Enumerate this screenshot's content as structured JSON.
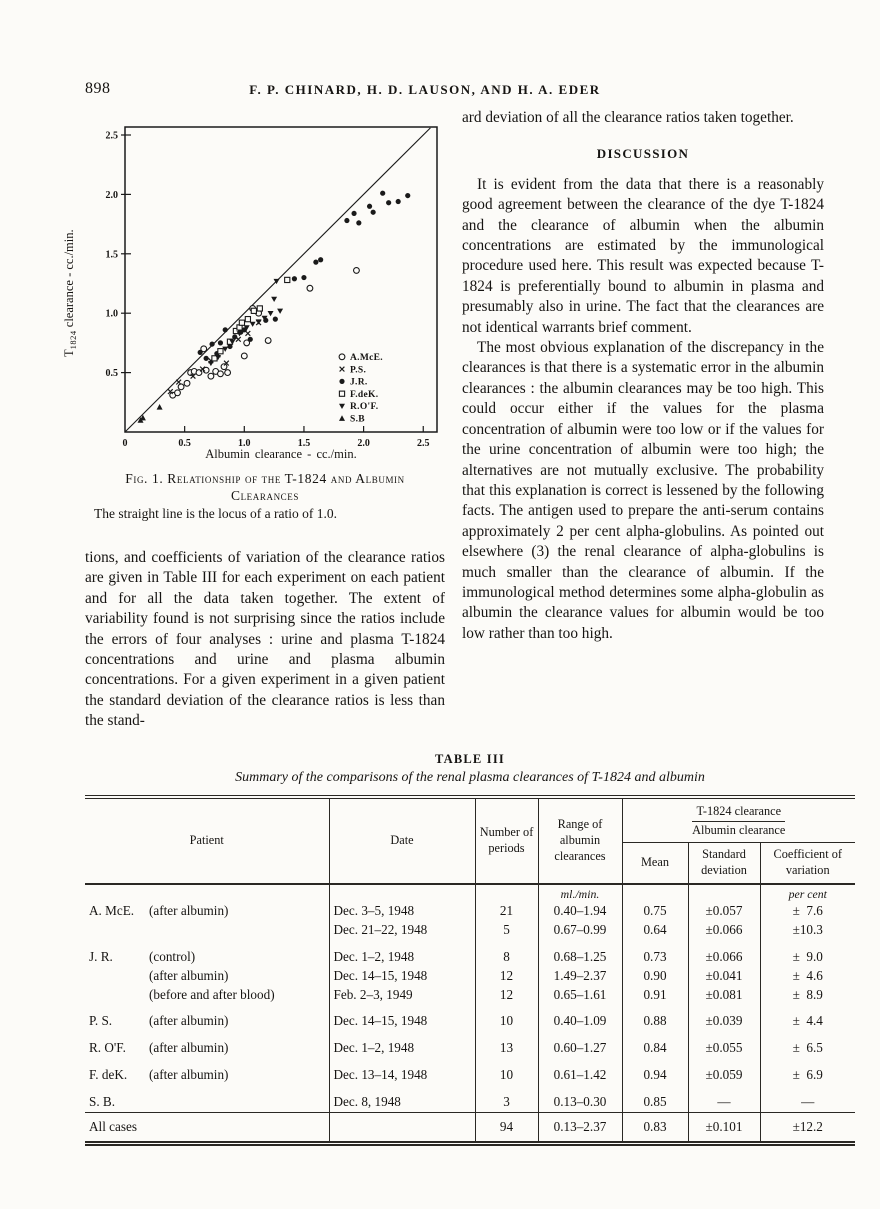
{
  "page": {
    "number": "898",
    "running_head": "F. P. CHINARD, H. D. LAUSON, AND H. A. EDER"
  },
  "figure": {
    "caption_line1": "Fig. 1. Relationship of the T-1824 and Albumin",
    "caption_line2": "Clearances",
    "note": "The straight line is the locus of a ratio of 1.0.",
    "xlabel": "Albumin clearance - cc./min.",
    "ylabel_base": "T",
    "ylabel_sub": "1824",
    "ylabel_rest": " clearance - cc./min."
  },
  "chart_data": {
    "type": "scatter",
    "title": "Fig. 1. Relationship of the T-1824 and Albumin Clearances",
    "xlabel": "Albumin clearance - cc./min.",
    "ylabel": "T-1824 clearance - cc./min.",
    "xlim": [
      0,
      2.62
    ],
    "ylim": [
      0,
      2.57
    ],
    "x_ticks": [
      0,
      0.5,
      1.0,
      1.5,
      2.0,
      2.5
    ],
    "x_tick_labels": [
      "0",
      "0.5",
      "1.0",
      "1.5",
      "2.0",
      "2.5"
    ],
    "y_ticks": [
      0.5,
      1.0,
      1.5,
      2.0,
      2.5
    ],
    "y_tick_labels": [
      "0.5",
      "1.0",
      "1.5",
      "2.0",
      "2.5"
    ],
    "grid": false,
    "legend_position": "inside-lower-right",
    "reference_line": {
      "from": [
        0,
        0
      ],
      "to": [
        2.56,
        2.56
      ],
      "meaning": "locus of ratio 1.0"
    },
    "series": [
      {
        "name": "A.McE.",
        "marker": "open-circle",
        "points": [
          [
            0.4,
            0.31
          ],
          [
            0.44,
            0.33
          ],
          [
            0.47,
            0.38
          ],
          [
            0.52,
            0.41
          ],
          [
            0.55,
            0.5
          ],
          [
            0.58,
            0.51
          ],
          [
            0.62,
            0.5
          ],
          [
            0.66,
            0.7
          ],
          [
            0.68,
            0.52
          ],
          [
            0.72,
            0.47
          ],
          [
            0.76,
            0.51
          ],
          [
            0.8,
            0.49
          ],
          [
            0.83,
            0.55
          ],
          [
            0.86,
            0.5
          ],
          [
            1.0,
            0.64
          ],
          [
            1.02,
            0.75
          ],
          [
            1.07,
            1.04
          ],
          [
            1.12,
            1.0
          ],
          [
            1.2,
            0.77
          ],
          [
            1.55,
            1.21
          ],
          [
            1.94,
            1.36
          ]
        ]
      },
      {
        "name": "P.S.",
        "marker": "x",
        "points": [
          [
            0.38,
            0.34
          ],
          [
            0.45,
            0.42
          ],
          [
            0.57,
            0.47
          ],
          [
            0.65,
            0.53
          ],
          [
            0.72,
            0.6
          ],
          [
            0.78,
            0.65
          ],
          [
            0.85,
            0.58
          ],
          [
            0.95,
            0.78
          ],
          [
            1.03,
            0.83
          ],
          [
            1.12,
            0.92
          ]
        ]
      },
      {
        "name": "J.R.",
        "marker": "filled-circle",
        "points": [
          [
            0.63,
            0.67
          ],
          [
            0.68,
            0.62
          ],
          [
            0.73,
            0.74
          ],
          [
            0.77,
            0.66
          ],
          [
            0.8,
            0.75
          ],
          [
            0.84,
            0.86
          ],
          [
            0.88,
            0.72
          ],
          [
            0.92,
            0.8
          ],
          [
            0.97,
            0.84
          ],
          [
            1.0,
            0.86
          ],
          [
            1.05,
            0.78
          ],
          [
            1.18,
            0.94
          ],
          [
            1.26,
            0.95
          ],
          [
            1.42,
            1.29
          ],
          [
            1.5,
            1.3
          ],
          [
            1.6,
            1.43
          ],
          [
            1.64,
            1.45
          ],
          [
            1.86,
            1.78
          ],
          [
            1.92,
            1.84
          ],
          [
            1.96,
            1.76
          ],
          [
            2.05,
            1.9
          ],
          [
            2.08,
            1.85
          ],
          [
            2.16,
            2.01
          ],
          [
            2.21,
            1.93
          ],
          [
            2.29,
            1.94
          ],
          [
            2.37,
            1.99
          ]
        ]
      },
      {
        "name": "F.deK.",
        "marker": "open-square",
        "points": [
          [
            0.75,
            0.62
          ],
          [
            0.8,
            0.68
          ],
          [
            0.88,
            0.76
          ],
          [
            0.93,
            0.85
          ],
          [
            0.96,
            0.88
          ],
          [
            0.98,
            0.92
          ],
          [
            1.03,
            0.95
          ],
          [
            1.08,
            1.02
          ],
          [
            1.13,
            1.04
          ],
          [
            1.36,
            1.28
          ]
        ]
      },
      {
        "name": "R.O'F.",
        "marker": "filled-triangle-down",
        "points": [
          [
            0.72,
            0.58
          ],
          [
            0.78,
            0.63
          ],
          [
            0.84,
            0.7
          ],
          [
            0.9,
            0.76
          ],
          [
            0.96,
            0.83
          ],
          [
            1.02,
            0.88
          ],
          [
            1.07,
            0.91
          ],
          [
            1.12,
            0.93
          ],
          [
            1.17,
            0.96
          ],
          [
            1.22,
            1.0
          ],
          [
            1.25,
            1.12
          ],
          [
            1.27,
            1.27
          ],
          [
            1.3,
            1.02
          ]
        ]
      },
      {
        "name": "S.B",
        "marker": "filled-triangle-up",
        "points": [
          [
            0.13,
            0.1
          ],
          [
            0.15,
            0.12
          ],
          [
            0.29,
            0.21
          ]
        ]
      }
    ]
  },
  "left_column": {
    "paragraph": "tions, and coefficients of variation of the clearance ratios are given in Table III for each experiment on each patient and for all the data taken together. The extent of variability found is not surprising since the ratios include the errors of four analyses : urine and plasma T-1824 concentrations and urine and plasma albumin concentrations. For a given experiment in a given patient the standard deviation of the clearance ratios is less than the stand-"
  },
  "right_column": {
    "continuation": "ard deviation of all the clearance ratios taken together.",
    "discussion_heading": "DISCUSSION",
    "para1": "It is evident from the data that there is a reasonably good agreement between the clearance of the dye T-1824 and the clearance of albumin when the albumin concentrations are estimated by the immunological procedure used here. This result was expected because T-1824 is preferentially bound to albumin in plasma and presumably also in urine. The fact that the clearances are not identical warrants brief comment.",
    "para2": "The most obvious explanation of the discrepancy in the clearances is that there is a systematic error in the albumin clearances : the albumin clearances may be too high. This could occur either if the values for the plasma concentration of albumin were too low or if the values for the urine concentration of albumin were too high; the alternatives are not mutually exclusive. The probability that this explanation is correct is lessened by the following facts. The antigen used to prepare the anti-serum contains approximately 2 per cent alpha-globulins. As pointed out elsewhere (3) the renal clearance of alpha-globulins is much smaller than the clearance of albumin. If the immunological method determines some alpha-globulin as albumin the clearance values for albumin would be too low rather than too high."
  },
  "table": {
    "title": "TABLE III",
    "subtitle": "Summary of the comparisons of the renal plasma clearances of T-1824 and albumin",
    "headers": {
      "patient": "Patient",
      "date": "Date",
      "periods": "Number of periods",
      "range": "Range of albumin clearances",
      "ratio_numerator": "T-1824 clearance",
      "ratio_denominator": "Albumin clearance",
      "mean": "Mean",
      "sd": "Standard deviation",
      "cv": "Coefficient of variation"
    },
    "units": {
      "range": "ml./min.",
      "cv": "per cent"
    },
    "rows": [
      {
        "patient": "A. McE.",
        "condition": "(after albumin)",
        "date": "Dec. 3–5, 1948",
        "n": "21",
        "range": "0.40–1.94",
        "mean": "0.75",
        "sd": "±0.057",
        "cv": "±  7.6",
        "group": false
      },
      {
        "patient": "",
        "condition": "",
        "date": "Dec. 21–22, 1948",
        "n": "5",
        "range": "0.67–0.99",
        "mean": "0.64",
        "sd": "±0.066",
        "cv": "±10.3",
        "group": false
      },
      {
        "patient": "J. R.",
        "condition": "(control)",
        "date": "Dec. 1–2, 1948",
        "n": "8",
        "range": "0.68–1.25",
        "mean": "0.73",
        "sd": "±0.066",
        "cv": "±  9.0",
        "group": true
      },
      {
        "patient": "",
        "condition": "(after albumin)",
        "date": "Dec. 14–15, 1948",
        "n": "12",
        "range": "1.49–2.37",
        "mean": "0.90",
        "sd": "±0.041",
        "cv": "±  4.6",
        "group": false
      },
      {
        "patient": "",
        "condition": "(before and after blood)",
        "date": "Feb. 2–3, 1949",
        "n": "12",
        "range": "0.65–1.61",
        "mean": "0.91",
        "sd": "±0.081",
        "cv": "±  8.9",
        "group": false
      },
      {
        "patient": "P. S.",
        "condition": "(after albumin)",
        "date": "Dec. 14–15, 1948",
        "n": "10",
        "range": "0.40–1.09",
        "mean": "0.88",
        "sd": "±0.039",
        "cv": "±  4.4",
        "group": true
      },
      {
        "patient": "R. O'F.",
        "condition": "(after albumin)",
        "date": "Dec. 1–2, 1948",
        "n": "13",
        "range": "0.60–1.27",
        "mean": "0.84",
        "sd": "±0.055",
        "cv": "±  6.5",
        "group": true
      },
      {
        "patient": "F. deK.",
        "condition": "(after albumin)",
        "date": "Dec. 13–14, 1948",
        "n": "10",
        "range": "0.61–1.42",
        "mean": "0.94",
        "sd": "±0.059",
        "cv": "±  6.9",
        "group": true
      },
      {
        "patient": "S. B.",
        "condition": "",
        "date": "Dec. 8, 1948",
        "n": "3",
        "range": "0.13–0.30",
        "mean": "0.85",
        "sd": "—",
        "cv": "—",
        "group": true
      }
    ],
    "all_cases": {
      "label": "All cases",
      "date": "",
      "n": "94",
      "range": "0.13–2.37",
      "mean": "0.83",
      "sd": "±0.101",
      "cv": "±12.2"
    }
  }
}
